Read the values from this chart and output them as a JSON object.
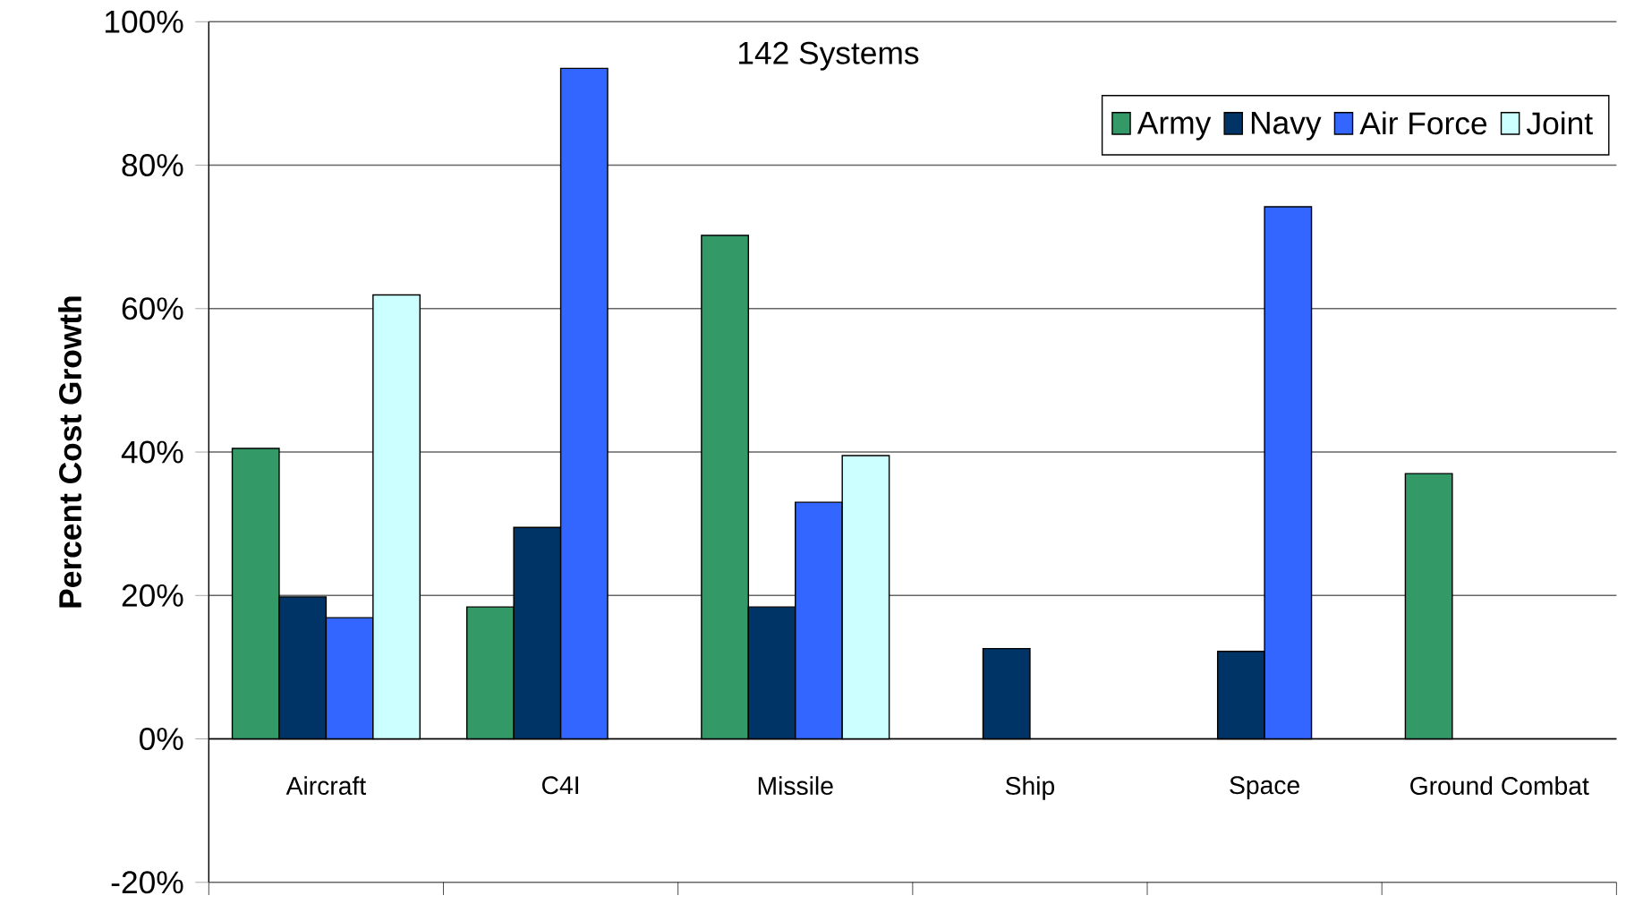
{
  "chart_data": {
    "type": "bar",
    "ylabel": "Percent Cost Growth",
    "annotations": [
      "142 Systems"
    ],
    "categories": [
      "Aircraft",
      "C4I",
      "Missile",
      "Ship",
      "Space",
      "Ground Combat"
    ],
    "series": [
      {
        "name": "Army",
        "color": "#339966",
        "values": [
          40.5,
          18.4,
          70.2,
          null,
          null,
          37.0
        ]
      },
      {
        "name": "Navy",
        "color": "#003366",
        "values": [
          19.8,
          29.5,
          18.4,
          12.6,
          12.2,
          null
        ]
      },
      {
        "name": "Air Force",
        "color": "#3366ff",
        "values": [
          16.9,
          93.5,
          33.0,
          null,
          74.2,
          null
        ]
      },
      {
        "name": "Joint",
        "color": "#ccffff",
        "values": [
          61.9,
          null,
          39.5,
          null,
          null,
          null
        ]
      }
    ],
    "ylim": [
      -20,
      100
    ],
    "yticks": [
      {
        "value": -20,
        "label": "-20%"
      },
      {
        "value": 0,
        "label": "0%"
      },
      {
        "value": 20,
        "label": "20%"
      },
      {
        "value": 40,
        "label": "40%"
      },
      {
        "value": 60,
        "label": "60%"
      },
      {
        "value": 80,
        "label": "80%"
      },
      {
        "value": 100,
        "label": "100%"
      }
    ],
    "grid": "y",
    "legend": "top right"
  }
}
